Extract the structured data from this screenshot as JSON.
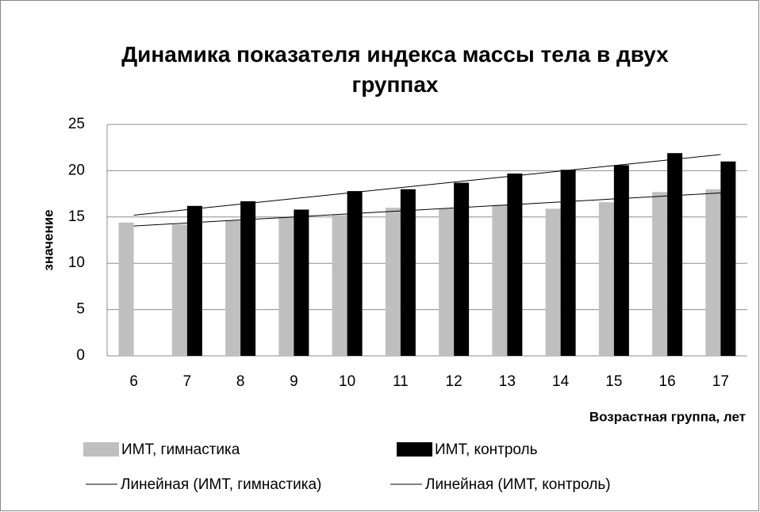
{
  "chart_data": {
    "type": "bar",
    "title": "Динамика показателя индекса массы тела в двух группах",
    "x_label": "Возрастная группа, лет",
    "y_label": "значение",
    "categories": [
      "6",
      "7",
      "8",
      "9",
      "10",
      "11",
      "12",
      "13",
      "14",
      "15",
      "16",
      "17"
    ],
    "series": [
      {
        "name": "ИМТ, гимнастика",
        "color": "#bfbfbf",
        "values": [
          14.4,
          14.2,
          14.6,
          15.0,
          15.2,
          16.0,
          15.9,
          16.3,
          15.9,
          16.6,
          17.7,
          18.0
        ],
        "trendline": {
          "type": "linear",
          "name": "Линейная (ИМТ, гимнастика)",
          "color": "#000000"
        }
      },
      {
        "name": "ИМТ, контроль",
        "color": "#000000",
        "values": [
          null,
          16.2,
          16.7,
          15.8,
          17.8,
          18.0,
          18.7,
          19.7,
          20.1,
          20.6,
          21.9,
          21.0
        ],
        "trendline": {
          "type": "linear",
          "name": "Линейная (ИМТ, контроль)",
          "color": "#000000"
        }
      }
    ],
    "ylim": [
      0,
      25
    ],
    "yticks": [
      0,
      5,
      10,
      15,
      20,
      25
    ],
    "grid": true
  }
}
